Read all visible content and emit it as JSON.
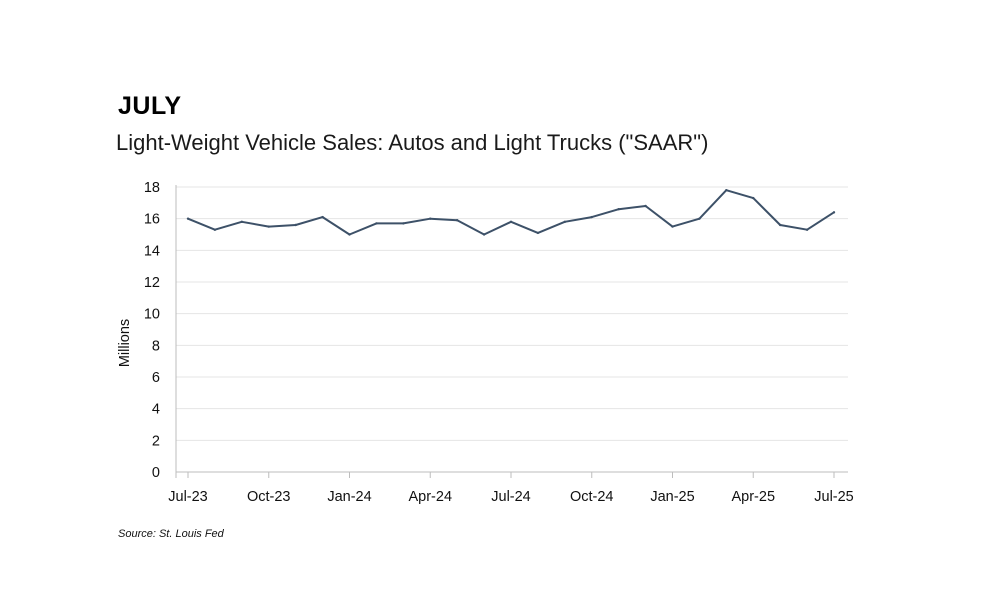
{
  "header": {
    "month": "JULY",
    "subtitle": "Light-Weight Vehicle Sales: Autos and Light Trucks (\"SAAR\")"
  },
  "footer": {
    "source": "Source: St. Louis Fed"
  },
  "colors": {
    "line": "#3d5168",
    "grid": "#e4e4e4",
    "axis": "#bdbdbd"
  },
  "chart_data": {
    "type": "line",
    "title": "Light-Weight Vehicle Sales: Autos and Light Trucks (\"SAAR\")",
    "xlabel": "",
    "ylabel": "Millions",
    "ylim": [
      0,
      18
    ],
    "yticks": [
      0,
      2,
      4,
      6,
      8,
      10,
      12,
      14,
      16,
      18
    ],
    "grid": true,
    "x": [
      "Jul-23",
      "Aug-23",
      "Sep-23",
      "Oct-23",
      "Nov-23",
      "Dec-23",
      "Jan-24",
      "Feb-24",
      "Mar-24",
      "Apr-24",
      "May-24",
      "Jun-24",
      "Jul-24",
      "Aug-24",
      "Sep-24",
      "Oct-24",
      "Nov-24",
      "Dec-24",
      "Jan-25",
      "Feb-25",
      "Mar-25",
      "Apr-25",
      "May-25",
      "Jun-25",
      "Jul-25"
    ],
    "xtick_labels": [
      "Jul-23",
      "Oct-23",
      "Jan-24",
      "Apr-24",
      "Jul-24",
      "Oct-24",
      "Jan-25",
      "Apr-25",
      "Jul-25"
    ],
    "series": [
      {
        "name": "Light-Weight Vehicle Sales",
        "values": [
          16.0,
          15.3,
          15.8,
          15.5,
          15.6,
          16.1,
          15.0,
          15.7,
          15.7,
          16.0,
          15.9,
          15.0,
          15.8,
          15.1,
          15.8,
          16.1,
          16.6,
          16.8,
          15.5,
          16.0,
          17.8,
          17.3,
          15.6,
          15.3,
          16.4
        ]
      }
    ]
  }
}
